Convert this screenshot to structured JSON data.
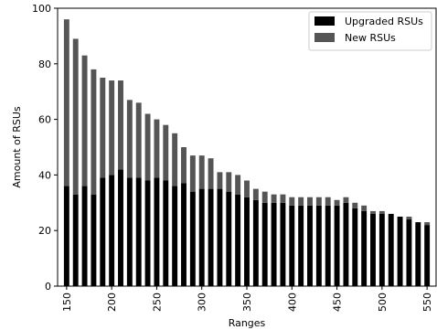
{
  "chart_data": {
    "type": "bar",
    "stacked": true,
    "xlabel": "Ranges",
    "ylabel": "Amount of RSUs",
    "ylim": [
      0,
      100
    ],
    "xlim": [
      140,
      560
    ],
    "bar_step": 10,
    "x_ticks": [
      150,
      200,
      250,
      300,
      350,
      400,
      450,
      500,
      550
    ],
    "y_ticks": [
      0,
      20,
      40,
      60,
      80,
      100
    ],
    "legend_position": "top-right",
    "grid": false,
    "x": [
      150,
      160,
      170,
      180,
      190,
      200,
      210,
      220,
      230,
      240,
      250,
      260,
      270,
      280,
      290,
      300,
      310,
      320,
      330,
      340,
      350,
      360,
      370,
      380,
      390,
      400,
      410,
      420,
      430,
      440,
      450,
      460,
      470,
      480,
      490,
      500,
      510,
      520,
      530,
      540,
      550
    ],
    "series": [
      {
        "name": "Upgraded RSUs",
        "color": "#000000",
        "values": [
          36,
          33,
          36,
          33,
          39,
          40,
          42,
          39,
          39,
          38,
          39,
          38,
          36,
          37,
          34,
          35,
          35,
          35,
          34,
          33,
          32,
          31,
          30,
          30,
          30,
          29,
          29,
          29,
          29,
          29,
          29,
          30,
          28,
          27,
          26,
          26,
          26,
          25,
          24,
          23,
          22
        ]
      },
      {
        "name": "New RSUs",
        "color": "#555555",
        "values": [
          60,
          56,
          47,
          45,
          36,
          34,
          32,
          28,
          27,
          24,
          21,
          20,
          19,
          13,
          13,
          12,
          11,
          6,
          7,
          7,
          6,
          4,
          4,
          3,
          3,
          3,
          3,
          3,
          3,
          3,
          2,
          2,
          2,
          2,
          1,
          1,
          0,
          0,
          1,
          0,
          1
        ]
      }
    ]
  }
}
